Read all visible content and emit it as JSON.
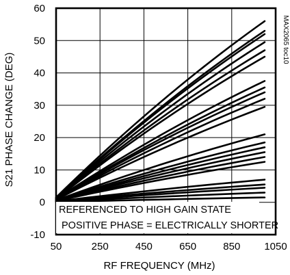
{
  "chart_data": {
    "type": "line",
    "xlabel": "RF FREQUENCY (MHz)",
    "ylabel": "S21 PHASE CHANGE (DEG)",
    "xlim": [
      50,
      1050
    ],
    "ylim": [
      -10,
      60
    ],
    "x_ticks": [
      "50",
      "250",
      "450",
      "650",
      "850",
      "1050"
    ],
    "y_ticks": [
      "60",
      "50",
      "40",
      "30",
      "20",
      "10",
      "0",
      "-10"
    ],
    "grid": true,
    "annotations": [
      "REFERENCED TO HIGH GAIN STATE",
      "POSITIVE PHASE = ELECTRICALLY SHORTER"
    ],
    "watermark": "MAX2065 toc10",
    "x": [
      50,
      1000
    ],
    "series": [
      {
        "values": [
          1.5,
          56
        ]
      },
      {
        "values": [
          1.4,
          53
        ]
      },
      {
        "values": [
          1.3,
          52
        ]
      },
      {
        "values": [
          1.2,
          49.5
        ]
      },
      {
        "values": [
          1.1,
          47
        ]
      },
      {
        "values": [
          1.0,
          45
        ]
      },
      {
        "values": [
          1.0,
          37.5
        ]
      },
      {
        "values": [
          0.9,
          35.5
        ]
      },
      {
        "values": [
          0.9,
          34
        ]
      },
      {
        "values": [
          0.8,
          32
        ]
      },
      {
        "values": [
          0.8,
          29.5
        ]
      },
      {
        "values": [
          0.6,
          21
        ]
      },
      {
        "values": [
          0.6,
          18.5
        ]
      },
      {
        "values": [
          0.5,
          17
        ]
      },
      {
        "values": [
          0.5,
          15.5
        ]
      },
      {
        "values": [
          0.4,
          14
        ]
      },
      {
        "values": [
          0.4,
          12.5
        ]
      },
      {
        "values": [
          0.3,
          7
        ]
      },
      {
        "values": [
          0.3,
          5.5
        ]
      },
      {
        "values": [
          0.2,
          4.5
        ]
      },
      {
        "values": [
          0.2,
          3
        ]
      },
      {
        "values": [
          0.1,
          1.5
        ]
      }
    ]
  }
}
